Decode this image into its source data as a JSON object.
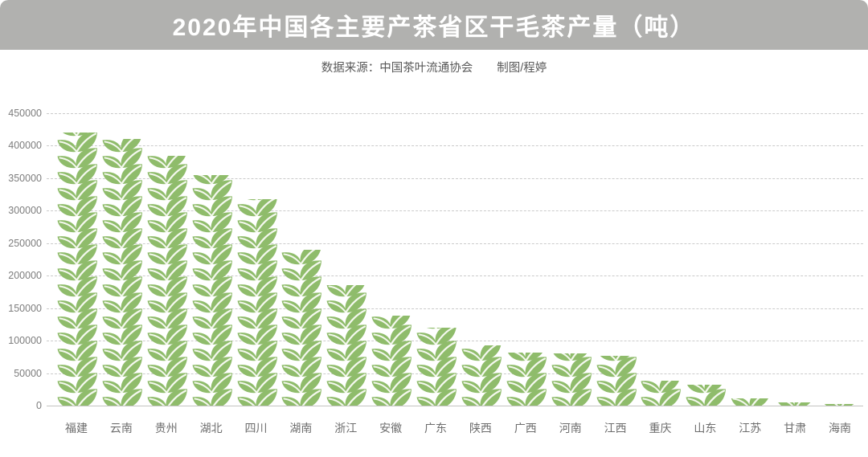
{
  "header": {
    "title": "2020年中国各主要产茶省区干毛茶产量（吨）",
    "source_note": "数据来源：中国茶叶流通协会",
    "credit": "制图/程婷"
  },
  "colors": {
    "banner_bg": "#b1b1af",
    "title_text": "#ffffff",
    "subtitle_text": "#595959",
    "leaf_green": "#8fbc6b",
    "leaf_vein": "#f4f8ee",
    "gridline": "#cbcbcb",
    "baseline": "#c3c3c1",
    "ytick_text": "#7d7d7d",
    "xtick_text": "#6e6e6e"
  },
  "chart_data": {
    "type": "bar",
    "style": "pictograph",
    "icon": "tea-leaf-sprig",
    "approx_value_per_leaf": 25000,
    "title": "2020年中国各主要产茶省区干毛茶产量（吨）",
    "xlabel": "",
    "ylabel": "",
    "unit": "吨",
    "categories": [
      "福建",
      "云南",
      "贵州",
      "湖北",
      "四川",
      "湖南",
      "浙江",
      "安徽",
      "广东",
      "陕西",
      "广西",
      "河南",
      "江西",
      "重庆",
      "山东",
      "江苏",
      "甘肃",
      "海南"
    ],
    "values": [
      420000,
      410000,
      385000,
      355000,
      318000,
      240000,
      185000,
      138000,
      120000,
      93000,
      82000,
      80000,
      77000,
      38000,
      32000,
      11000,
      5000,
      2500
    ],
    "ylim": [
      0,
      450000
    ],
    "yticks": [
      0,
      50000,
      100000,
      150000,
      200000,
      250000,
      300000,
      350000,
      400000,
      450000
    ],
    "grid": "horizontal-dashed",
    "legend": "none"
  }
}
